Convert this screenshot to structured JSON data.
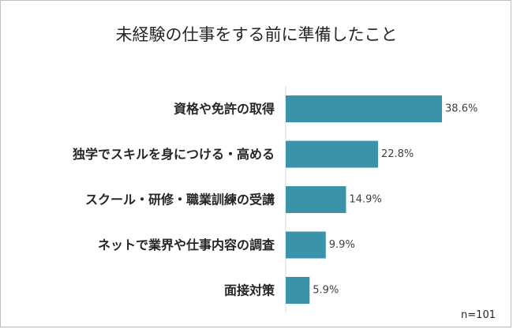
{
  "chart_data": {
    "type": "bar",
    "orientation": "horizontal",
    "title": "未経験の仕事をする前に準備したこと",
    "categories": [
      "資格や免許の取得",
      "独学でスキルを身につける・高める",
      "スクール・研修・職業訓練の受講",
      "ネットで業界や仕事内容の調査",
      "面接対策"
    ],
    "values": [
      38.6,
      22.8,
      14.9,
      9.9,
      5.9
    ],
    "value_labels": [
      "38.6%",
      "22.8%",
      "14.9%",
      "9.9%",
      "5.9%"
    ],
    "unit": "%",
    "xlim": [
      0,
      40
    ],
    "grid": false,
    "bar_color": "#3a93a8",
    "note": "n=101"
  }
}
